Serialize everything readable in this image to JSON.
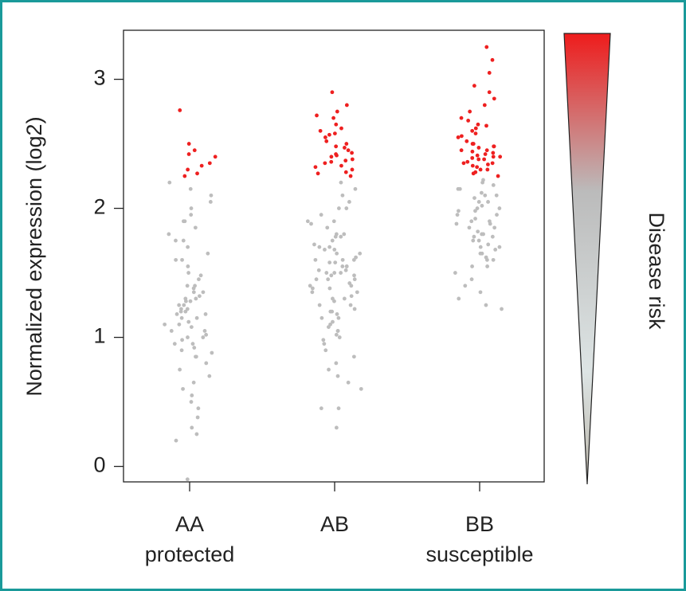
{
  "chart_data": {
    "type": "strip",
    "ylabel": "Normalized expression (log2)",
    "scale_label": "Disease risk",
    "color": "#bdbdbd",
    "highlight_color": "#ee2020",
    "ylim": [
      -0.12,
      3.38
    ],
    "yticks": [
      0,
      1,
      2,
      3
    ],
    "groups": [
      {
        "category": "AA",
        "sublabel": "protected",
        "values": [
          -0.1,
          0.2,
          0.25,
          0.3,
          0.38,
          0.45,
          0.5,
          0.55,
          0.6,
          0.65,
          0.7,
          0.75,
          0.8,
          0.85,
          0.88,
          0.9,
          0.92,
          0.95,
          0.98,
          1.0,
          1.02,
          1.05,
          1.08,
          1.1,
          1.12,
          1.15,
          1.18,
          1.2,
          1.22,
          1.25,
          1.28,
          1.3,
          1.32,
          1.35,
          1.38,
          1.4,
          1.45,
          1.5,
          1.55,
          1.6,
          1.65,
          1.7,
          1.75,
          1.8,
          1.85,
          1.9,
          1.95,
          2.0,
          2.05,
          2.1,
          2.15,
          2.2,
          1.1,
          1.2,
          1.3,
          1.0,
          0.95,
          1.15,
          1.25,
          1.4,
          1.05,
          1.22,
          1.35,
          0.85,
          1.6,
          1.75,
          1.9,
          1.48,
          1.18,
          1.28
        ],
        "high_values": [
          2.25,
          2.3,
          2.35,
          2.4,
          2.45,
          2.5,
          2.27,
          2.76,
          2.33,
          2.42
        ]
      },
      {
        "category": "AB",
        "sublabel": "",
        "values": [
          0.3,
          0.45,
          0.45,
          0.6,
          0.65,
          0.7,
          0.75,
          0.8,
          0.85,
          0.9,
          0.95,
          1.0,
          1.02,
          1.05,
          1.08,
          1.1,
          1.12,
          1.15,
          1.18,
          1.2,
          1.22,
          1.25,
          1.28,
          1.3,
          1.32,
          1.35,
          1.38,
          1.4,
          1.42,
          1.45,
          1.48,
          1.5,
          1.52,
          1.55,
          1.58,
          1.6,
          1.62,
          1.65,
          1.68,
          1.7,
          1.72,
          1.75,
          1.78,
          1.8,
          1.85,
          1.9,
          1.95,
          2.0,
          2.05,
          2.1,
          2.15,
          2.2,
          1.45,
          1.5,
          1.55,
          1.6,
          1.4,
          1.35,
          1.3,
          1.65,
          1.7,
          1.5,
          1.55,
          1.45,
          1.25,
          1.2,
          1.6,
          1.8,
          1.9,
          2.0,
          1.15,
          1.05,
          0.98,
          1.38,
          1.48,
          1.58,
          1.68,
          1.78,
          1.88,
          1.52
        ],
        "high_values": [
          2.25,
          2.27,
          2.3,
          2.32,
          2.35,
          2.37,
          2.4,
          2.42,
          2.45,
          2.47,
          2.5,
          2.52,
          2.55,
          2.57,
          2.6,
          2.62,
          2.65,
          2.7,
          2.75,
          2.8,
          2.9,
          2.28,
          2.33,
          2.38,
          2.43,
          2.48,
          2.36,
          2.41,
          2.58,
          2.72
        ]
      },
      {
        "category": "BB",
        "sublabel": "susceptible",
        "values": [
          1.22,
          1.25,
          1.3,
          1.35,
          1.4,
          1.45,
          1.5,
          1.55,
          1.6,
          1.62,
          1.65,
          1.68,
          1.7,
          1.72,
          1.75,
          1.78,
          1.8,
          1.82,
          1.85,
          1.88,
          1.9,
          1.92,
          1.95,
          1.98,
          2.0,
          2.02,
          2.05,
          2.08,
          2.1,
          2.12,
          2.15,
          2.18,
          2.2,
          2.22,
          1.75,
          1.8,
          1.85,
          1.9,
          1.95,
          2.0,
          2.05,
          1.7,
          1.65,
          1.6,
          1.55,
          2.1,
          2.15,
          1.98,
          1.88,
          1.78
        ],
        "high_values": [
          2.25,
          2.27,
          2.28,
          2.3,
          2.32,
          2.33,
          2.35,
          2.36,
          2.38,
          2.4,
          2.41,
          2.42,
          2.44,
          2.45,
          2.47,
          2.48,
          2.5,
          2.52,
          2.55,
          2.58,
          2.6,
          2.62,
          2.65,
          2.68,
          2.7,
          2.75,
          2.8,
          2.85,
          2.9,
          2.95,
          3.05,
          3.15,
          3.25,
          2.3,
          2.35,
          2.4,
          2.45,
          2.5,
          2.38,
          2.43,
          2.48,
          2.56,
          2.64,
          2.34,
          2.39
        ]
      }
    ]
  }
}
